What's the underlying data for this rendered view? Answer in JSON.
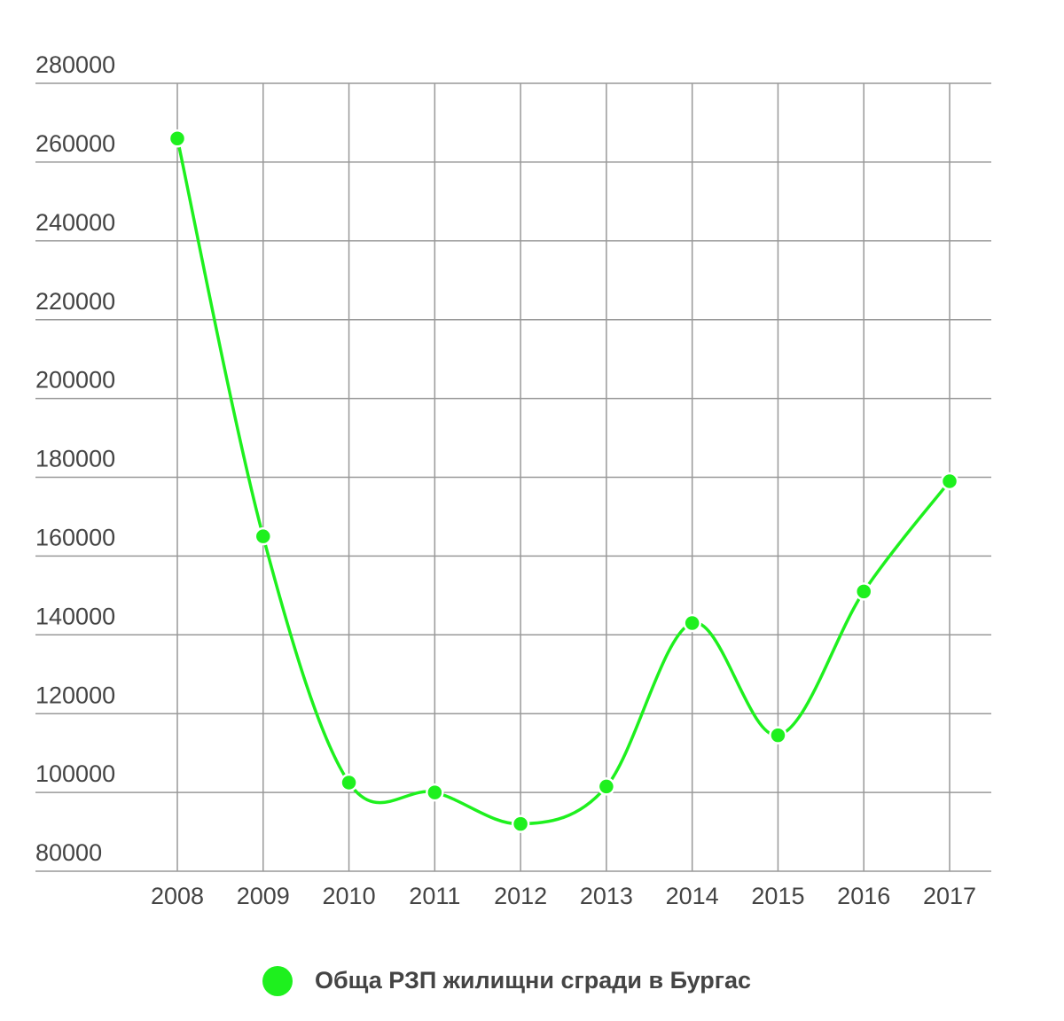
{
  "chart_data": {
    "type": "line",
    "categories": [
      "2008",
      "2009",
      "2010",
      "2011",
      "2012",
      "2013",
      "2014",
      "2015",
      "2016",
      "2017"
    ],
    "series": [
      {
        "name": "Обща РЗП жилищни сгради в Бургас",
        "color": "#1ef01e",
        "values": [
          266000,
          165000,
          102500,
          100000,
          92000,
          101500,
          143000,
          114500,
          151000,
          179000
        ]
      }
    ],
    "ylim": [
      80000,
      280000
    ],
    "yticks": [
      80000,
      100000,
      120000,
      140000,
      160000,
      180000,
      200000,
      220000,
      240000,
      260000,
      280000
    ],
    "grid": true,
    "smooth": true,
    "legend": "bottom"
  }
}
